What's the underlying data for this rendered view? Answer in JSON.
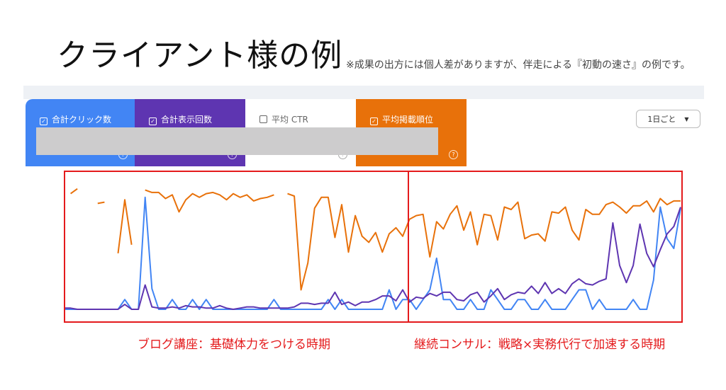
{
  "title": "クライアント様の例",
  "note": "※成果の出方には個人差がありますが、伴走による『初動の速さ』の例です。",
  "metric_cards": [
    {
      "label": "合計クリック数",
      "checked": true,
      "color": "#4285f4"
    },
    {
      "label": "合計表示回数",
      "checked": true,
      "color": "#5e35b1"
    },
    {
      "label": "平均 CTR",
      "checked": false,
      "color": "#ffffff"
    },
    {
      "label": "平均掲載順位",
      "checked": true,
      "color": "#e8710a"
    }
  ],
  "help_icon": "?",
  "check_icon": "✓",
  "dropdown": {
    "value": "1日ごと",
    "icon": "▼"
  },
  "annotations": {
    "phase1": "ブログ講座：基礎体力をつける時期",
    "phase2": "継続コンサル：戦略×実務代行で加速する時期",
    "box_color": "#e41a1c"
  },
  "chart_data": {
    "type": "line",
    "title": "",
    "xlabel": "",
    "ylabel": "",
    "axes_visible": false,
    "grid": false,
    "scale": "relative (no axis printed)",
    "ylim": [
      0,
      100
    ],
    "series": [
      {
        "name": "合計クリック数",
        "color": "#4285f4",
        "values": [
          0,
          0,
          0,
          0,
          0,
          0,
          0,
          0,
          0,
          8,
          0,
          0,
          92,
          17,
          0,
          0,
          8,
          0,
          0,
          8,
          0,
          8,
          0,
          0,
          0,
          0,
          0,
          0,
          0,
          0,
          0,
          8,
          0,
          0,
          0,
          0,
          0,
          0,
          0,
          8,
          0,
          8,
          0,
          0,
          0,
          0,
          0,
          0,
          16,
          0,
          8,
          8,
          0,
          8,
          16,
          42,
          8,
          8,
          0,
          0,
          8,
          0,
          0,
          16,
          8,
          0,
          0,
          8,
          8,
          0,
          0,
          8,
          0,
          0,
          0,
          8,
          16,
          16,
          0,
          8,
          0,
          0,
          0,
          0,
          8,
          0,
          0,
          24,
          84,
          58,
          50,
          83
        ]
      },
      {
        "name": "合計表示回数",
        "color": "#5e35b1",
        "values": [
          1,
          1,
          0,
          0,
          0,
          0,
          0,
          0,
          0,
          4,
          0,
          0,
          20,
          2,
          1,
          1,
          2,
          1,
          3,
          2,
          2,
          1,
          1,
          3,
          1,
          0,
          1,
          2,
          2,
          1,
          1,
          1,
          1,
          1,
          2,
          5,
          5,
          4,
          5,
          5,
          14,
          4,
          6,
          3,
          6,
          6,
          8,
          11,
          11,
          7,
          16,
          6,
          10,
          9,
          13,
          11,
          14,
          14,
          8,
          7,
          12,
          14,
          6,
          11,
          17,
          8,
          12,
          14,
          13,
          19,
          13,
          22,
          13,
          17,
          13,
          21,
          25,
          21,
          20,
          23,
          25,
          71,
          36,
          22,
          36,
          70,
          46,
          35,
          49,
          62,
          68,
          84
        ]
      },
      {
        "name": "平均掲載順位",
        "color": "#e8710a",
        "values": [
          null,
          95,
          99,
          null,
          null,
          87,
          88,
          null,
          46,
          90,
          53,
          null,
          98,
          96,
          96,
          91,
          94,
          80,
          90,
          95,
          92,
          95,
          96,
          94,
          90,
          95,
          92,
          94,
          89,
          91,
          92,
          94,
          null,
          95,
          93,
          16,
          38,
          83,
          92,
          92,
          59,
          86,
          47,
          77,
          60,
          55,
          63,
          47,
          62,
          67,
          60,
          74,
          77,
          78,
          43,
          72,
          66,
          78,
          85,
          65,
          80,
          53,
          78,
          77,
          57,
          84,
          82,
          88,
          58,
          61,
          62,
          56,
          80,
          79,
          84,
          65,
          57,
          82,
          78,
          78,
          86,
          88,
          84,
          79,
          85,
          85,
          89,
          80,
          91,
          86,
          89,
          89
        ]
      }
    ]
  }
}
